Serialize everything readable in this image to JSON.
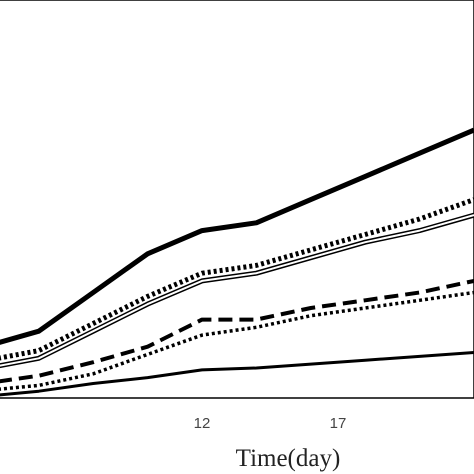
{
  "chart_data": {
    "type": "line",
    "title": "",
    "xlabel": "Time(day)",
    "ylabel": "",
    "xlim": [
      4.5,
      22
    ],
    "ylim": [
      0,
      100
    ],
    "x_ticks": [
      12,
      17
    ],
    "grid": false,
    "legend": "none",
    "series": [
      {
        "style": "thick-solid",
        "x": [
          4.5,
          6,
          8,
          10,
          12,
          14,
          16,
          18,
          20,
          22
        ],
        "y": [
          14,
          17,
          27,
          37,
          43,
          45,
          51,
          57,
          63,
          69
        ]
      },
      {
        "style": "dotted-thick",
        "x": [
          4.5,
          6,
          8,
          10,
          12,
          14,
          16,
          18,
          20,
          22
        ],
        "y": [
          10,
          12,
          19,
          26,
          32,
          34,
          38,
          42,
          46,
          51
        ]
      },
      {
        "style": "double-line",
        "x": [
          4.5,
          6,
          8,
          10,
          12,
          14,
          16,
          18,
          20,
          22
        ],
        "y": [
          8,
          10,
          17,
          24,
          30,
          32,
          36,
          40,
          43,
          47
        ]
      },
      {
        "style": "dashed",
        "x": [
          4.5,
          6,
          8,
          10,
          12,
          14,
          16,
          18,
          20,
          22
        ],
        "y": [
          4,
          5.5,
          9,
          13,
          20,
          20,
          23,
          25,
          27,
          30
        ]
      },
      {
        "style": "dotted",
        "x": [
          4.5,
          6,
          8,
          10,
          12,
          14,
          16,
          18,
          20,
          22
        ],
        "y": [
          2,
          3,
          6,
          11,
          16,
          18,
          21,
          23,
          25,
          27
        ]
      },
      {
        "style": "thin-solid",
        "x": [
          4.5,
          6,
          8,
          10,
          12,
          14,
          16,
          18,
          20,
          22
        ],
        "y": [
          0.5,
          1.5,
          3.5,
          5,
          7,
          7.5,
          8.5,
          9.5,
          10.5,
          11.5
        ]
      }
    ],
    "line_color": "#000000"
  }
}
